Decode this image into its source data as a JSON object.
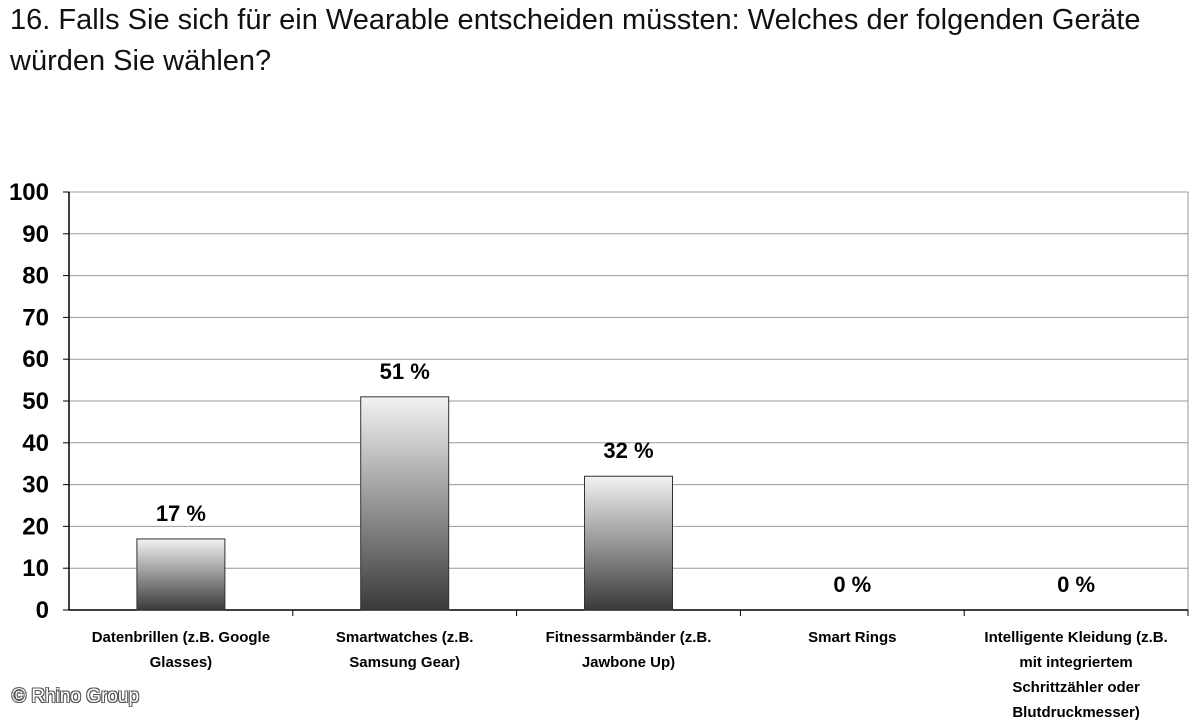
{
  "chart_data": {
    "type": "bar",
    "title": "16. Falls Sie sich für ein Wearable entscheiden müssten: Welches der folgenden Geräte würden Sie wählen?",
    "categories": [
      [
        "Datenbrillen (z.B. Google",
        "Glasses)"
      ],
      [
        "Smartwatches (z.B.",
        "Samsung Gear)"
      ],
      [
        "Fitnessarmbänder (z.B.",
        "Jawbone Up)"
      ],
      [
        "Smart Rings"
      ],
      [
        "Intelligente Kleidung (z.B.",
        "mit integriertem",
        "Schrittzähler oder",
        "Blutdruckmesser)"
      ]
    ],
    "values": [
      17,
      51,
      32,
      0,
      0
    ],
    "data_labels": [
      "17 %",
      "51 %",
      "32 %",
      "0 %",
      "0 %"
    ],
    "yticks": [
      "0",
      "10",
      "20",
      "30",
      "40",
      "50",
      "60",
      "70",
      "80",
      "90",
      "100"
    ],
    "ylim": [
      0,
      100
    ],
    "xlabel": "",
    "ylabel": "",
    "grid": true,
    "legend": "none"
  },
  "watermark": "© Rhino Group",
  "colors": {
    "bar_top": "#f2f2f2",
    "bar_bottom": "#3a3a3a",
    "grid": "#9a9a9a",
    "axis": "#000000"
  }
}
